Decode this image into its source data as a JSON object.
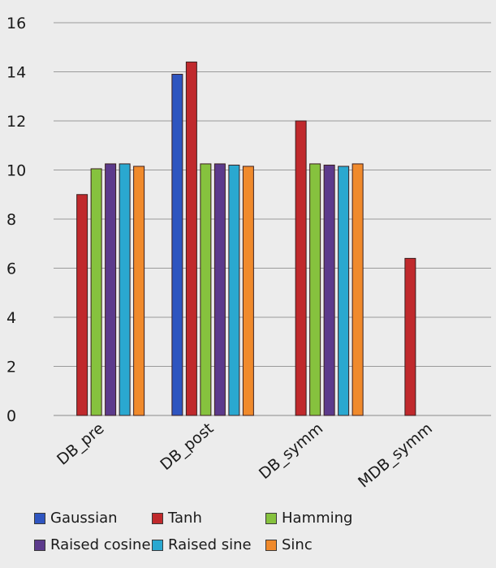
{
  "chart_data": {
    "type": "bar",
    "categories": [
      "DB_pre",
      "DB_post",
      "DB_symm",
      "MDB_symm"
    ],
    "series": [
      {
        "name": "Gaussian",
        "color": "#2f55c0",
        "values": [
          null,
          13.9,
          null,
          null
        ]
      },
      {
        "name": "Tanh",
        "color": "#c0292c",
        "values": [
          9.0,
          14.4,
          12.0,
          6.4
        ]
      },
      {
        "name": "Hamming",
        "color": "#86c23e",
        "values": [
          10.05,
          10.25,
          10.25,
          null
        ]
      },
      {
        "name": "Raised cosine",
        "color": "#5c3a8c",
        "values": [
          10.25,
          10.25,
          10.2,
          null
        ]
      },
      {
        "name": "Raised sine",
        "color": "#2aa8d0",
        "values": [
          10.25,
          10.2,
          10.15,
          null
        ]
      },
      {
        "name": "Sinc",
        "color": "#f08a2c",
        "values": [
          10.15,
          10.15,
          10.25,
          null
        ]
      }
    ],
    "ylim": [
      0,
      16
    ],
    "yticks": [
      0,
      2,
      4,
      6,
      8,
      10,
      12,
      14,
      16
    ],
    "grid": true,
    "legend_position": "bottom",
    "xlabel": "",
    "ylabel": "",
    "title": ""
  }
}
